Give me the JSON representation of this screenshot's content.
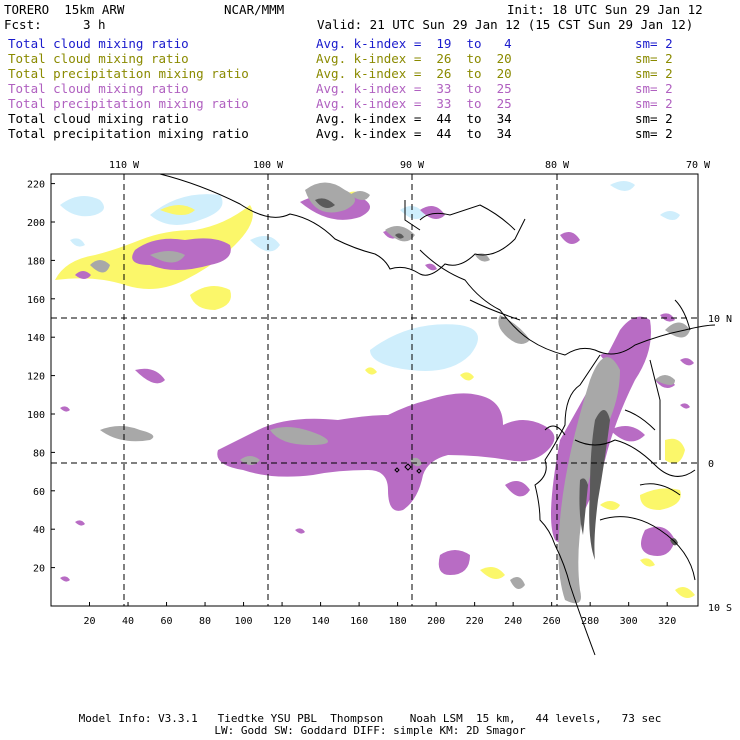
{
  "header": {
    "model": "TORERO  15km ARW",
    "center": "NCAR/MMM",
    "init": "Init: 18 UTC Sun 29 Jan 12",
    "fcst_label": "Fcst:",
    "fcst_value": "3 h",
    "valid": "Valid: 21 UTC Sun 29 Jan 12 (15 CST Sun 29 Jan 12)"
  },
  "legend": [
    {
      "field": "Total cloud mixing ratio",
      "kindex": "Avg. k-index =  19  to   4",
      "sm": "sm= 2",
      "color": "#1a1acc"
    },
    {
      "field": "Total cloud mixing ratio",
      "kindex": "Avg. k-index =  26  to  20",
      "sm": "sm= 2",
      "color": "#8a8a00"
    },
    {
      "field": "Total precipitation mixing ratio",
      "kindex": "Avg. k-index =  26  to  20",
      "sm": "sm= 2",
      "color": "#8a8a00"
    },
    {
      "field": "Total cloud mixing ratio",
      "kindex": "Avg. k-index =  33  to  25",
      "sm": "sm= 2",
      "color": "#b060c0"
    },
    {
      "field": "Total precipitation mixing ratio",
      "kindex": "Avg. k-index =  33  to  25",
      "sm": "sm= 2",
      "color": "#b060c0"
    },
    {
      "field": "Total cloud mixing ratio",
      "kindex": "Avg. k-index =  44  to  34",
      "sm": "sm= 2",
      "color": "#000000"
    },
    {
      "field": "Total precipitation mixing ratio",
      "kindex": "Avg. k-index =  44  to  34",
      "sm": "sm= 2",
      "color": "#000000"
    }
  ],
  "map": {
    "top_lon_labels": [
      "110 W",
      "100 W",
      "90 W",
      "80 W",
      "70 W"
    ],
    "right_lat_labels": [
      "10 N",
      "0",
      "10 S"
    ],
    "left_y_ticks": [
      "220",
      "200",
      "180",
      "160",
      "140",
      "120",
      "100",
      "80",
      "60",
      "40",
      "20"
    ],
    "bottom_x_ticks": [
      "20",
      "40",
      "60",
      "80",
      "100",
      "120",
      "140",
      "160",
      "180",
      "200",
      "220",
      "240",
      "260",
      "280",
      "300",
      "320"
    ],
    "colors": {
      "light_blue": "#cfeefc",
      "yellow": "#fbf76a",
      "purple": "#b86cc4",
      "gray": "#a8a8a8",
      "dark_gray": "#5a5a5a"
    }
  },
  "footer": {
    "line1": "Model Info: V3.3.1   Tiedtke YSU PBL  Thompson    Noah LSM  15 km,   44 levels,   73 sec",
    "line2": "LW: Godd SW: Goddard DIFF: simple KM: 2D Smagor"
  }
}
